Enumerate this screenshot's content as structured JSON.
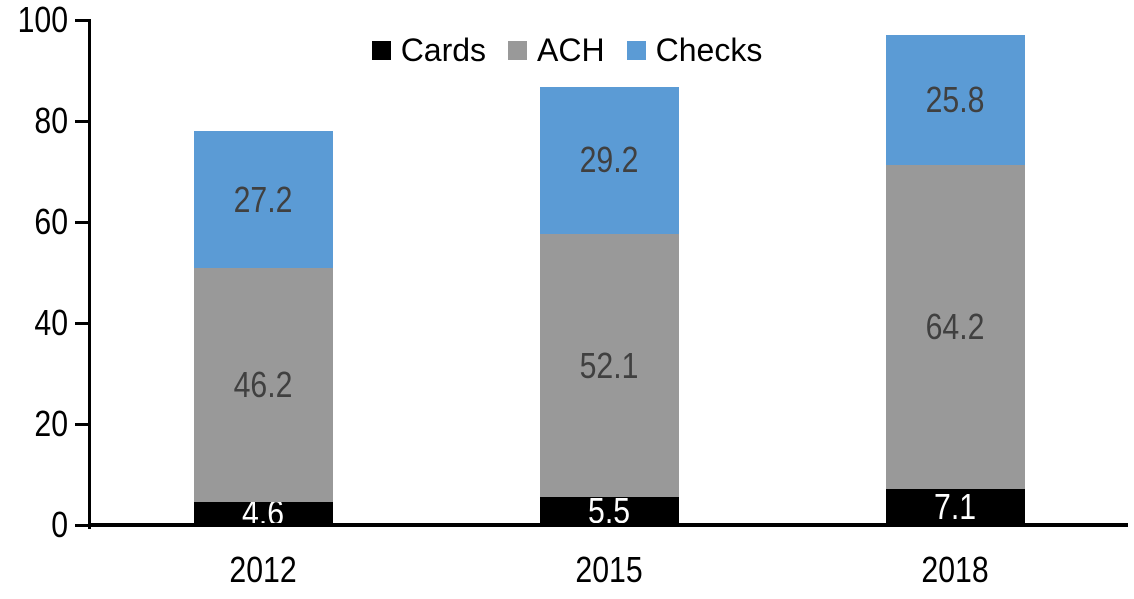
{
  "chart_data": {
    "type": "bar",
    "stacked": true,
    "title": "",
    "xlabel": "",
    "ylabel": "",
    "categories": [
      "2012",
      "2015",
      "2018"
    ],
    "series": [
      {
        "name": "Cards",
        "color": "#000000",
        "label_color": "#ffffff",
        "values": [
          4.6,
          5.5,
          7.1
        ]
      },
      {
        "name": "ACH",
        "color": "#999999",
        "label_color": "#404040",
        "values": [
          46.2,
          52.1,
          64.2
        ]
      },
      {
        "name": "Checks",
        "color": "#5b9bd5",
        "label_color": "#404040",
        "values": [
          27.2,
          29.2,
          25.8
        ]
      }
    ],
    "totals": [
      78.0,
      86.8,
      97.1
    ],
    "ylim": [
      0,
      100
    ],
    "y_ticks": [
      0,
      20,
      40,
      60,
      80,
      100
    ],
    "grid": false,
    "legend_position": "top",
    "axis_color": "#000000",
    "background_color": "#ffffff",
    "data_label_decimals": 1
  }
}
